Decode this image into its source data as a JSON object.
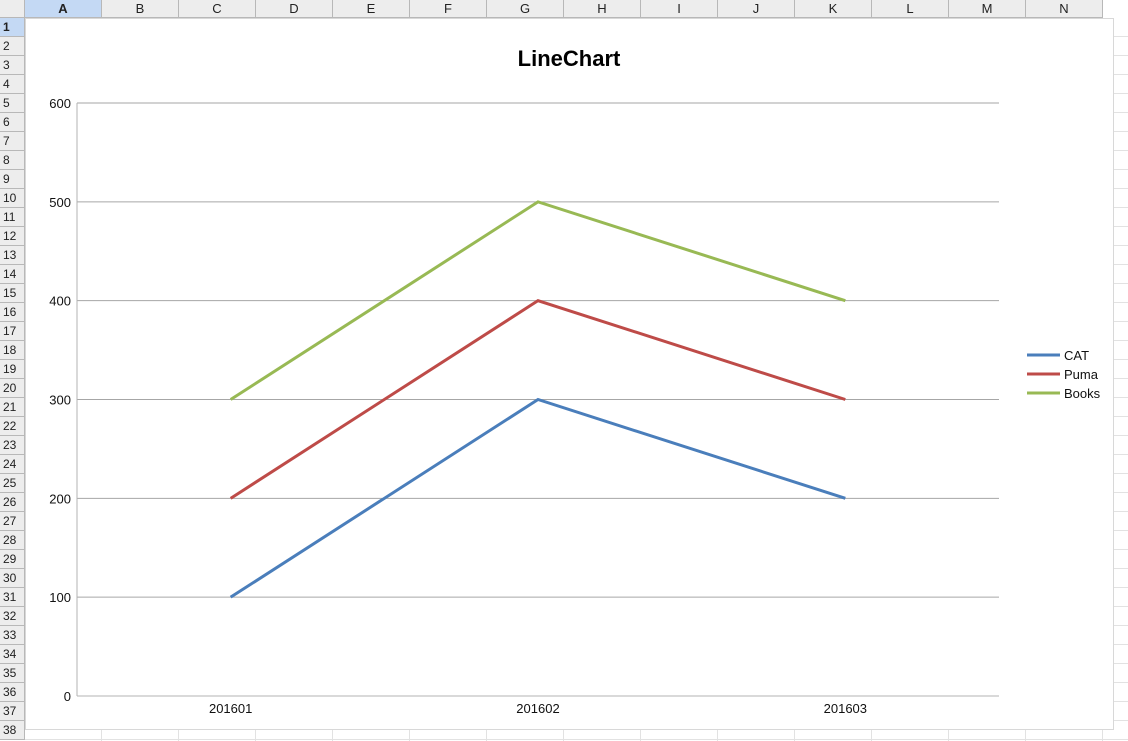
{
  "spreadsheet": {
    "columns": [
      "A",
      "B",
      "C",
      "D",
      "E",
      "F",
      "G",
      "H",
      "I",
      "J",
      "K",
      "L",
      "M",
      "N"
    ],
    "rows": [
      "1",
      "2",
      "3",
      "4",
      "5",
      "6",
      "7",
      "8",
      "9",
      "10",
      "11",
      "12",
      "13",
      "14",
      "15",
      "16",
      "17",
      "18",
      "19",
      "20",
      "21",
      "22",
      "23",
      "24",
      "25",
      "26",
      "27",
      "28",
      "29",
      "30",
      "31",
      "32",
      "33",
      "34",
      "35",
      "36",
      "37",
      "38"
    ],
    "selected_column": "A",
    "selected_row": "1"
  },
  "chart_data": {
    "type": "line",
    "title": "LineChart",
    "categories": [
      "201601",
      "201602",
      "201603"
    ],
    "series": [
      {
        "name": "CAT",
        "values": [
          100,
          300,
          200
        ],
        "color": "#4a7ebb"
      },
      {
        "name": "Puma",
        "values": [
          200,
          400,
          300
        ],
        "color": "#be4b48"
      },
      {
        "name": "Books",
        "values": [
          300,
          500,
          400
        ],
        "color": "#98b954"
      }
    ],
    "ylim": [
      0,
      600
    ],
    "yticks": [
      0,
      100,
      200,
      300,
      400,
      500,
      600
    ],
    "grid": true,
    "legend": "right"
  }
}
